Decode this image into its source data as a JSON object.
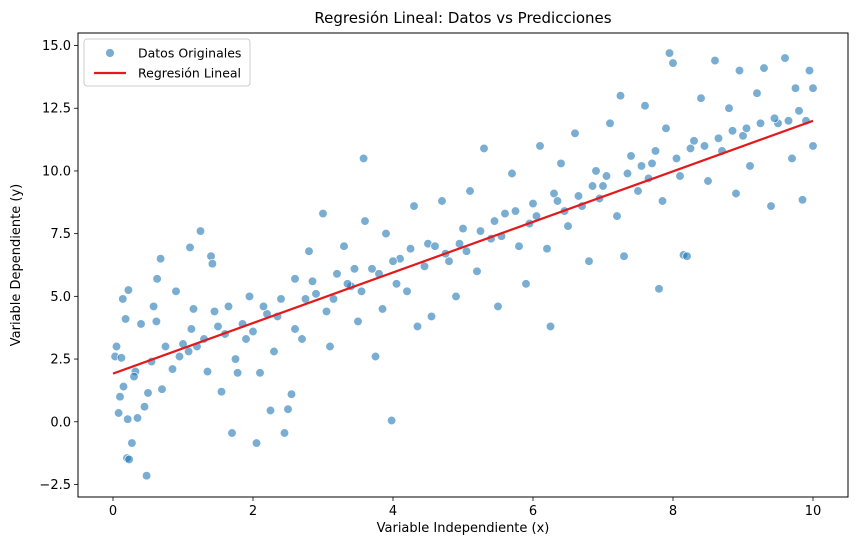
{
  "chart_data": {
    "type": "scatter",
    "title": "Regresión Lineal: Datos vs Predicciones",
    "xlabel": "Variable Independiente (x)",
    "ylabel": "Variable Dependiente (y)",
    "xlim": [
      -0.5,
      10.5
    ],
    "ylim": [
      -3.0,
      15.5
    ],
    "xticks": [
      0,
      2,
      4,
      6,
      8,
      10
    ],
    "xtick_labels": [
      "0",
      "2",
      "4",
      "6",
      "8",
      "10"
    ],
    "yticks": [
      -2.5,
      0.0,
      2.5,
      5.0,
      7.5,
      10.0,
      12.5,
      15.0
    ],
    "ytick_labels": [
      "−2.5",
      "0.0",
      "2.5",
      "5.0",
      "7.5",
      "10.0",
      "12.5",
      "15.0"
    ],
    "grid": false,
    "legend_position": "upper-left",
    "series": [
      {
        "name": "Datos Originales",
        "kind": "scatter",
        "color": "#1f77b4",
        "points": [
          [
            0.48,
            -2.15
          ],
          [
            0.2,
            -1.45
          ],
          [
            0.23,
            -1.5
          ],
          [
            0.27,
            -0.85
          ],
          [
            0.08,
            0.35
          ],
          [
            0.21,
            0.1
          ],
          [
            0.35,
            0.15
          ],
          [
            0.15,
            1.4
          ],
          [
            0.32,
            2.0
          ],
          [
            0.03,
            2.6
          ],
          [
            0.05,
            3.0
          ],
          [
            0.12,
            2.55
          ],
          [
            0.18,
            4.1
          ],
          [
            0.22,
            5.25
          ],
          [
            0.14,
            4.9
          ],
          [
            0.4,
            3.9
          ],
          [
            0.62,
            4.0
          ],
          [
            0.68,
            6.5
          ],
          [
            0.63,
            5.7
          ],
          [
            0.9,
            5.2
          ],
          [
            0.58,
            4.6
          ],
          [
            0.75,
            3.0
          ],
          [
            0.5,
            1.15
          ],
          [
            0.45,
            0.6
          ],
          [
            0.85,
            2.1
          ],
          [
            1.0,
            3.1
          ],
          [
            1.08,
            2.8
          ],
          [
            1.12,
            3.7
          ],
          [
            1.15,
            4.5
          ],
          [
            1.1,
            6.95
          ],
          [
            1.25,
            7.6
          ],
          [
            1.3,
            3.3
          ],
          [
            1.4,
            6.6
          ],
          [
            1.42,
            6.3
          ],
          [
            1.45,
            4.4
          ],
          [
            1.6,
            3.5
          ],
          [
            1.7,
            -0.45
          ],
          [
            1.55,
            1.2
          ],
          [
            1.78,
            1.95
          ],
          [
            1.65,
            4.6
          ],
          [
            1.9,
            3.3
          ],
          [
            1.95,
            5.0
          ],
          [
            2.05,
            -0.85
          ],
          [
            2.1,
            1.95
          ],
          [
            2.2,
            4.3
          ],
          [
            2.25,
            0.45
          ],
          [
            2.3,
            2.8
          ],
          [
            2.4,
            4.9
          ],
          [
            2.5,
            0.5
          ],
          [
            2.45,
            -0.45
          ],
          [
            2.55,
            1.1
          ],
          [
            2.6,
            5.7
          ],
          [
            2.7,
            3.3
          ],
          [
            2.8,
            6.8
          ],
          [
            2.9,
            5.1
          ],
          [
            3.0,
            8.3
          ],
          [
            3.05,
            4.4
          ],
          [
            3.1,
            3.0
          ],
          [
            3.2,
            5.9
          ],
          [
            3.3,
            7.0
          ],
          [
            3.4,
            5.4
          ],
          [
            3.5,
            4.0
          ],
          [
            3.58,
            10.5
          ],
          [
            3.6,
            8.0
          ],
          [
            3.7,
            6.1
          ],
          [
            3.75,
            2.6
          ],
          [
            3.85,
            4.5
          ],
          [
            3.9,
            7.5
          ],
          [
            3.98,
            0.05
          ],
          [
            4.1,
            6.5
          ],
          [
            4.2,
            5.2
          ],
          [
            4.3,
            8.6
          ],
          [
            4.35,
            3.8
          ],
          [
            4.5,
            7.1
          ],
          [
            4.55,
            4.2
          ],
          [
            4.7,
            8.8
          ],
          [
            4.8,
            6.4
          ],
          [
            4.9,
            5.0
          ],
          [
            5.0,
            7.7
          ],
          [
            5.1,
            9.2
          ],
          [
            5.2,
            6.0
          ],
          [
            5.3,
            10.9
          ],
          [
            5.4,
            7.3
          ],
          [
            5.5,
            4.6
          ],
          [
            5.6,
            8.3
          ],
          [
            5.7,
            9.9
          ],
          [
            5.8,
            7.0
          ],
          [
            5.9,
            5.5
          ],
          [
            6.0,
            8.7
          ],
          [
            6.1,
            11.0
          ],
          [
            6.2,
            6.9
          ],
          [
            6.25,
            3.8
          ],
          [
            6.3,
            9.1
          ],
          [
            6.4,
            10.3
          ],
          [
            6.5,
            7.8
          ],
          [
            6.6,
            11.5
          ],
          [
            6.7,
            8.6
          ],
          [
            6.8,
            6.4
          ],
          [
            6.9,
            10.0
          ],
          [
            7.0,
            9.4
          ],
          [
            7.1,
            11.9
          ],
          [
            7.2,
            8.2
          ],
          [
            7.25,
            13.0
          ],
          [
            7.3,
            6.6
          ],
          [
            7.4,
            10.6
          ],
          [
            7.5,
            9.2
          ],
          [
            7.6,
            12.6
          ],
          [
            7.7,
            10.3
          ],
          [
            7.8,
            5.3
          ],
          [
            7.85,
            8.8
          ],
          [
            7.9,
            11.7
          ],
          [
            7.95,
            14.7
          ],
          [
            8.0,
            14.3
          ],
          [
            8.1,
            9.8
          ],
          [
            8.15,
            6.65
          ],
          [
            8.2,
            6.6
          ],
          [
            8.3,
            11.2
          ],
          [
            8.4,
            12.9
          ],
          [
            8.5,
            9.6
          ],
          [
            8.6,
            14.4
          ],
          [
            8.7,
            10.8
          ],
          [
            8.8,
            12.5
          ],
          [
            8.9,
            9.1
          ],
          [
            8.95,
            14.0
          ],
          [
            9.0,
            11.4
          ],
          [
            9.1,
            10.2
          ],
          [
            9.2,
            13.1
          ],
          [
            9.3,
            14.1
          ],
          [
            9.4,
            8.6
          ],
          [
            9.5,
            11.9
          ],
          [
            9.6,
            14.5
          ],
          [
            9.7,
            10.5
          ],
          [
            9.75,
            13.3
          ],
          [
            9.85,
            8.85
          ],
          [
            9.9,
            12.0
          ],
          [
            9.95,
            14.0
          ],
          [
            10.0,
            13.3
          ],
          [
            10.0,
            11.0
          ],
          [
            0.1,
            1.0
          ],
          [
            0.3,
            1.8
          ],
          [
            0.55,
            2.4
          ],
          [
            0.7,
            1.3
          ],
          [
            0.95,
            2.6
          ],
          [
            1.2,
            3.0
          ],
          [
            1.35,
            2.0
          ],
          [
            1.5,
            3.8
          ],
          [
            1.75,
            2.5
          ],
          [
            1.85,
            3.9
          ],
          [
            2.0,
            3.6
          ],
          [
            2.15,
            4.6
          ],
          [
            2.35,
            4.2
          ],
          [
            2.6,
            3.7
          ],
          [
            2.75,
            4.9
          ],
          [
            2.85,
            5.6
          ],
          [
            3.15,
            4.9
          ],
          [
            3.35,
            5.5
          ],
          [
            3.45,
            6.1
          ],
          [
            3.55,
            5.2
          ],
          [
            3.8,
            5.9
          ],
          [
            4.0,
            6.4
          ],
          [
            4.05,
            5.5
          ],
          [
            4.25,
            6.9
          ],
          [
            4.45,
            6.2
          ],
          [
            4.6,
            7.0
          ],
          [
            4.75,
            6.7
          ],
          [
            4.95,
            7.1
          ],
          [
            5.05,
            6.8
          ],
          [
            5.25,
            7.6
          ],
          [
            5.45,
            8.0
          ],
          [
            5.55,
            7.4
          ],
          [
            5.75,
            8.4
          ],
          [
            5.95,
            7.9
          ],
          [
            6.05,
            8.2
          ],
          [
            6.35,
            8.8
          ],
          [
            6.45,
            8.4
          ],
          [
            6.65,
            9.0
          ],
          [
            6.85,
            9.4
          ],
          [
            6.95,
            8.9
          ],
          [
            7.05,
            9.8
          ],
          [
            7.35,
            9.9
          ],
          [
            7.55,
            10.2
          ],
          [
            7.65,
            9.7
          ],
          [
            7.75,
            10.8
          ],
          [
            8.05,
            10.5
          ],
          [
            8.25,
            10.9
          ],
          [
            8.45,
            11.0
          ],
          [
            8.65,
            11.3
          ],
          [
            8.85,
            11.6
          ],
          [
            9.05,
            11.7
          ],
          [
            9.25,
            11.9
          ],
          [
            9.45,
            12.1
          ],
          [
            9.65,
            12.0
          ],
          [
            9.8,
            12.4
          ]
        ]
      },
      {
        "name": "Regresión Lineal",
        "kind": "line",
        "color": "#e31a1c",
        "x": [
          0,
          10
        ],
        "y": [
          1.92,
          12.0
        ]
      }
    ]
  }
}
